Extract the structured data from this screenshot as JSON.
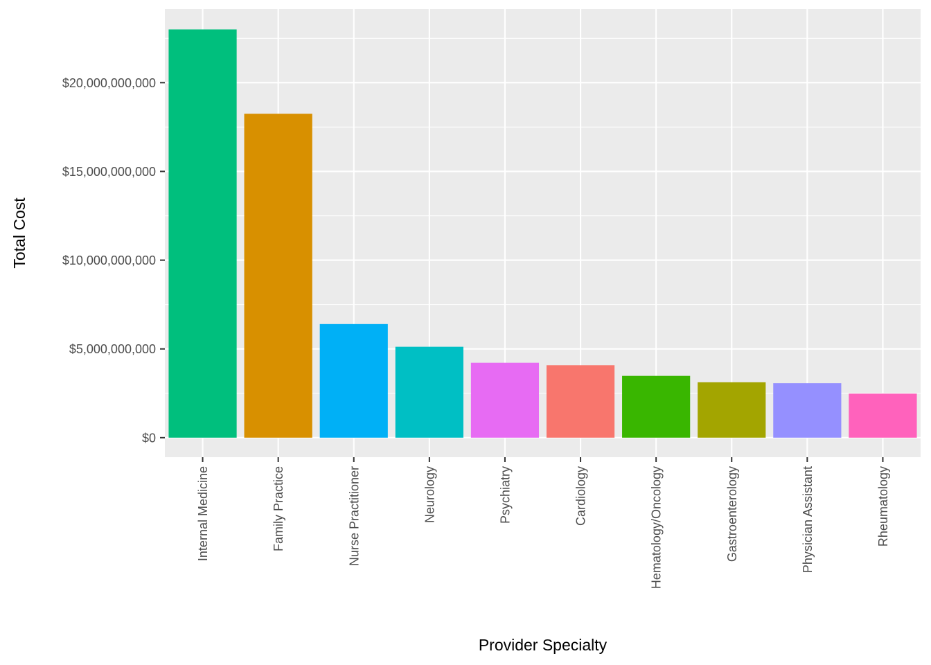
{
  "chart_data": {
    "type": "bar",
    "title": "",
    "xlabel": "Provider Specialty",
    "ylabel": "Total Cost",
    "categories": [
      "Internal Medicine",
      "Family Practice",
      "Nurse Practitioner",
      "Neurology",
      "Psychiatry",
      "Cardiology",
      "Hematology/Oncology",
      "Gastroenterology",
      "Physician Assistant",
      "Rheumatology"
    ],
    "values": [
      23000000000,
      18250000000,
      6400000000,
      5120000000,
      4220000000,
      4080000000,
      3480000000,
      3120000000,
      3070000000,
      2480000000
    ],
    "colors": [
      "#00BF7D",
      "#D89000",
      "#00B0F6",
      "#00BFC4",
      "#E76BF3",
      "#F8766D",
      "#39B600",
      "#A3A500",
      "#9590FF",
      "#FF62BC"
    ],
    "ylim": [
      -1100000000,
      24150000000
    ],
    "y_ticks": [
      0,
      5000000000,
      10000000000,
      15000000000,
      20000000000
    ],
    "y_tick_labels": [
      "$0",
      "$5,000,000,000",
      "$10,000,000,000",
      "$15,000,000,000",
      "$20,000,000,000"
    ],
    "grid": true,
    "panel_background": "#EBEBEB",
    "grid_color": "#FFFFFF",
    "legend": "none"
  }
}
